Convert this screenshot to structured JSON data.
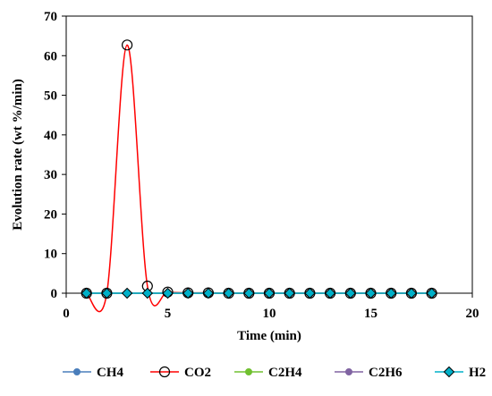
{
  "chart_data": {
    "type": "line",
    "title": "",
    "xlabel": "Time (min)",
    "ylabel": "Evolution rate (wt %/min)",
    "xlim": [
      0,
      20
    ],
    "ylim": [
      0,
      70
    ],
    "x_ticks": [
      0,
      5,
      10,
      15,
      20
    ],
    "y_ticks": [
      0,
      10,
      20,
      30,
      40,
      50,
      60,
      70
    ],
    "grid": false,
    "legend_position": "bottom",
    "x": [
      1,
      2,
      3,
      4,
      5,
      6,
      7,
      8,
      9,
      10,
      11,
      12,
      13,
      14,
      15,
      16,
      17,
      18
    ],
    "series": [
      {
        "name": "CH4",
        "color": "#4a7ebb",
        "marker": "circle-filled",
        "values": [
          0,
          0,
          0,
          0,
          0,
          0,
          0,
          0,
          0,
          0,
          0,
          0,
          0,
          0,
          0,
          0,
          0,
          0
        ]
      },
      {
        "name": "CO2",
        "color": "#ff0000",
        "marker": "circle-open",
        "values": [
          0,
          0,
          62.7,
          1.8,
          0.3,
          0.1,
          0.1,
          0,
          0,
          0,
          0,
          0,
          0,
          0,
          0,
          0,
          0,
          0
        ]
      },
      {
        "name": "C2H4",
        "color": "#70c030",
        "marker": "circle-filled",
        "values": [
          0,
          0,
          0,
          0,
          0,
          0,
          0,
          0,
          0,
          0,
          0,
          0,
          0,
          0,
          0,
          0,
          0,
          0
        ]
      },
      {
        "name": "C2H6",
        "color": "#8064a2",
        "marker": "circle-filled",
        "values": [
          0,
          0,
          0,
          0,
          0,
          0,
          0,
          0,
          0,
          0,
          0,
          0,
          0,
          0,
          0,
          0,
          0,
          0
        ]
      },
      {
        "name": "H2",
        "color": "#00b0c8",
        "marker": "diamond",
        "values": [
          0,
          0,
          0,
          0,
          0,
          0,
          0,
          0,
          0,
          0,
          0,
          0,
          0,
          0,
          0,
          0,
          0,
          0
        ]
      }
    ]
  }
}
